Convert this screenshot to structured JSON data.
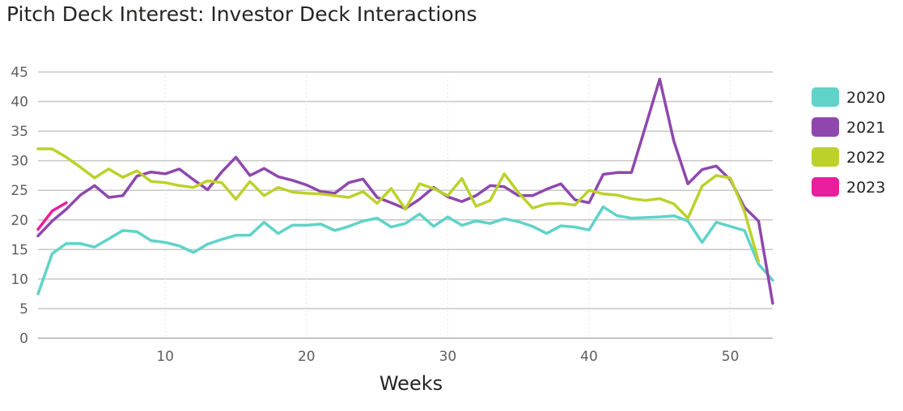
{
  "chart_data": {
    "type": "line",
    "title": "Pitch Deck Interest: Investor Deck Interactions",
    "xlabel": "Weeks",
    "ylabel": "",
    "xlim": [
      1,
      53
    ],
    "ylim": [
      0,
      45
    ],
    "x_ticks": [
      10,
      20,
      30,
      40,
      50
    ],
    "y_ticks": [
      0,
      5,
      10,
      15,
      20,
      25,
      30,
      35,
      40,
      45
    ],
    "grid": true,
    "legend_position": "right",
    "series": [
      {
        "name": "2020",
        "color": "#5fd3c8",
        "x": [
          1,
          2,
          3,
          4,
          5,
          6,
          7,
          8,
          9,
          10,
          11,
          12,
          13,
          14,
          15,
          16,
          17,
          18,
          19,
          20,
          21,
          22,
          23,
          24,
          25,
          26,
          27,
          28,
          29,
          30,
          31,
          32,
          33,
          34,
          35,
          36,
          37,
          38,
          39,
          40,
          41,
          42,
          43,
          44,
          45,
          46,
          47,
          48,
          49,
          50,
          51,
          52,
          53
        ],
        "values": [
          7.5,
          14.3,
          16,
          16,
          15.4,
          16.8,
          18.2,
          18,
          16.5,
          16.2,
          15.6,
          14.5,
          15.9,
          16.7,
          17.4,
          17.4,
          19.6,
          17.7,
          19.1,
          19.1,
          19.3,
          18.2,
          18.9,
          19.8,
          20.3,
          18.8,
          19.4,
          21,
          18.9,
          20.5,
          19.1,
          19.8,
          19.4,
          20.2,
          19.7,
          18.9,
          17.7,
          19,
          18.8,
          18.3,
          22.2,
          20.7,
          20.3,
          20.4,
          20.5,
          20.7,
          19.8,
          16.2,
          19.6,
          18.9,
          18.2,
          12.5,
          9.8
        ]
      },
      {
        "name": "2021",
        "color": "#8f47ad",
        "x": [
          1,
          2,
          3,
          4,
          5,
          6,
          7,
          8,
          9,
          10,
          11,
          12,
          13,
          14,
          15,
          16,
          17,
          18,
          19,
          20,
          21,
          22,
          23,
          24,
          25,
          26,
          27,
          28,
          29,
          30,
          31,
          32,
          33,
          34,
          35,
          36,
          37,
          38,
          39,
          40,
          41,
          42,
          43,
          44,
          45,
          46,
          47,
          48,
          49,
          50,
          51,
          52,
          53
        ],
        "values": [
          17.3,
          19.8,
          21.8,
          24.2,
          25.8,
          23.8,
          24.1,
          27.4,
          28.1,
          27.8,
          28.6,
          26.8,
          25.1,
          28.1,
          30.6,
          27.5,
          28.7,
          27.3,
          26.7,
          25.9,
          24.8,
          24.5,
          26.3,
          26.9,
          23.8,
          22.9,
          21.9,
          23.5,
          25.5,
          23.9,
          23.1,
          24.1,
          25.8,
          25.6,
          24.1,
          24.1,
          25.2,
          26.1,
          23.4,
          22.9,
          27.7,
          28,
          28,
          35.8,
          43.8,
          33.3,
          26.1,
          28.5,
          29.1,
          26.8,
          22.1,
          19.8,
          5.9
        ]
      },
      {
        "name": "2022",
        "color": "#bcd12a",
        "x": [
          1,
          2,
          3,
          4,
          5,
          6,
          7,
          8,
          9,
          10,
          11,
          12,
          13,
          14,
          15,
          16,
          17,
          18,
          19,
          20,
          21,
          22,
          23,
          24,
          25,
          26,
          27,
          28,
          29,
          30,
          31,
          32,
          33,
          34,
          35,
          36,
          37,
          38,
          39,
          40,
          41,
          42,
          43,
          44,
          45,
          46,
          47,
          48,
          49,
          50,
          51,
          52
        ],
        "values": [
          32,
          32,
          30.6,
          28.9,
          27.1,
          28.6,
          27.2,
          28.3,
          26.5,
          26.3,
          25.8,
          25.5,
          26.6,
          26.3,
          23.5,
          26.5,
          24.1,
          25.5,
          24.7,
          24.5,
          24.4,
          24.1,
          23.8,
          24.8,
          22.8,
          25.3,
          21.8,
          26.1,
          25.3,
          24.1,
          27,
          22.3,
          23.3,
          27.8,
          24.6,
          22,
          22.7,
          22.8,
          22.5,
          25,
          24.4,
          24.2,
          23.6,
          23.3,
          23.6,
          22.7,
          20.3,
          25.7,
          27.5,
          27.1,
          21.4,
          13
        ]
      },
      {
        "name": "2023",
        "color": "#e91e9c",
        "x": [
          1,
          2,
          3
        ],
        "values": [
          18.4,
          21.5,
          22.9
        ]
      }
    ]
  }
}
